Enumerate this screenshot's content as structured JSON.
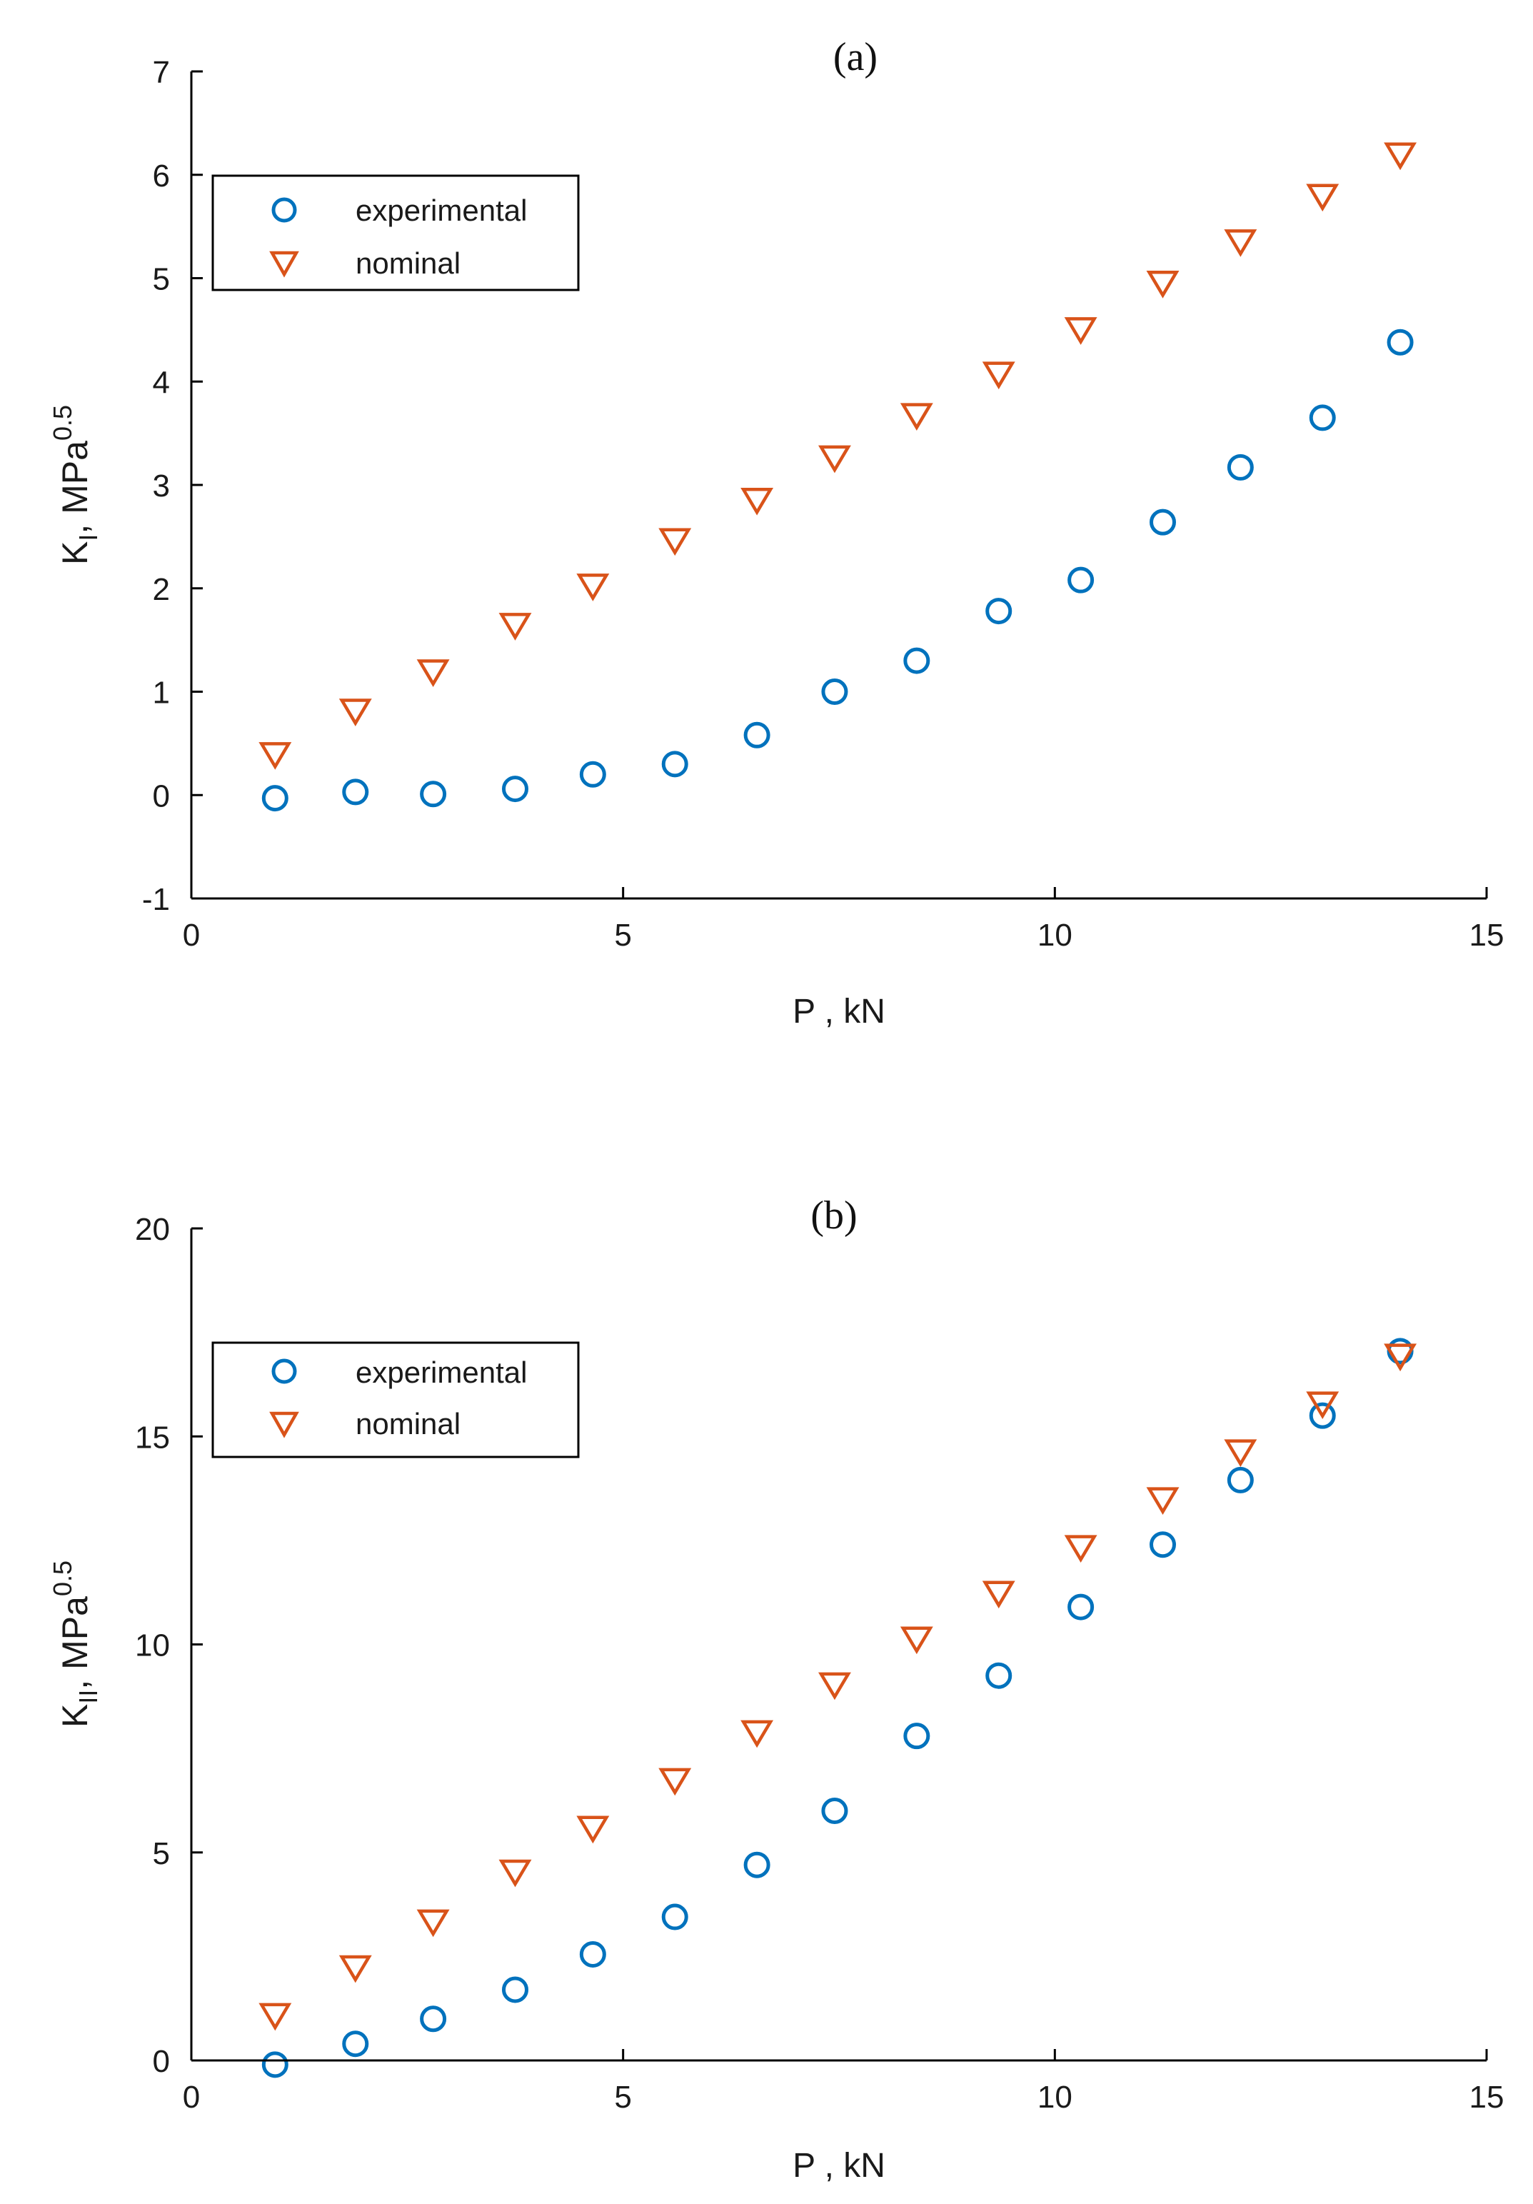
{
  "chart_data": [
    {
      "panel": "(a)",
      "type": "scatter",
      "title": "(a)",
      "xlabel": "P , kN",
      "ylabel": {
        "main": "K",
        "subscript": "I",
        "rest": ", MPa",
        "superscript": "0.5"
      },
      "xlim": [
        0,
        15
      ],
      "ylim": [
        -1,
        7
      ],
      "xticks": [
        0,
        5,
        10,
        15
      ],
      "yticks": [
        -1,
        0,
        1,
        2,
        3,
        4,
        5,
        6,
        7
      ],
      "grid": false,
      "legend_position": "top-left",
      "series": [
        {
          "name": "experimental",
          "marker": "circle",
          "color": "#0072BD",
          "x": [
            0.97,
            1.9,
            2.8,
            3.75,
            4.65,
            5.6,
            6.55,
            7.45,
            8.4,
            9.35,
            10.3,
            11.25,
            12.15,
            13.1,
            14.0
          ],
          "y": [
            -0.03,
            0.03,
            0.01,
            0.06,
            0.2,
            0.3,
            0.58,
            1.0,
            1.3,
            1.78,
            2.08,
            2.64,
            3.17,
            3.65,
            4.38
          ]
        },
        {
          "name": "nominal",
          "marker": "triangle-down",
          "color": "#D95319",
          "x": [
            0.97,
            1.9,
            2.8,
            3.75,
            4.65,
            5.6,
            6.55,
            7.45,
            8.4,
            9.35,
            10.3,
            11.25,
            12.15,
            13.1,
            14.0
          ],
          "y": [
            0.4,
            0.82,
            1.2,
            1.65,
            2.03,
            2.47,
            2.86,
            3.27,
            3.68,
            4.08,
            4.51,
            4.96,
            5.36,
            5.8,
            6.2
          ]
        }
      ]
    },
    {
      "panel": "(b)",
      "type": "scatter",
      "title": "(b)",
      "xlabel": "P , kN",
      "ylabel": {
        "main": "K",
        "subscript": "II",
        "rest": ", MPa",
        "superscript": "0.5"
      },
      "xlim": [
        0,
        15
      ],
      "ylim": [
        0,
        20
      ],
      "xticks": [
        0,
        5,
        10,
        15
      ],
      "yticks": [
        0,
        5,
        10,
        15,
        20
      ],
      "grid": false,
      "legend_position": "top-left",
      "series": [
        {
          "name": "experimental",
          "marker": "circle",
          "color": "#0072BD",
          "x": [
            0.97,
            1.9,
            2.8,
            3.75,
            4.65,
            5.6,
            6.55,
            7.45,
            8.4,
            9.35,
            10.3,
            11.25,
            12.15,
            13.1,
            14.0
          ],
          "y": [
            -0.1,
            0.4,
            1.0,
            1.7,
            2.55,
            3.45,
            4.7,
            6.0,
            7.8,
            9.25,
            10.9,
            12.4,
            13.95,
            15.5,
            17.05
          ]
        },
        {
          "name": "nominal",
          "marker": "triangle-down",
          "color": "#D95319",
          "x": [
            0.97,
            1.9,
            2.8,
            3.75,
            4.65,
            5.6,
            6.55,
            7.45,
            8.4,
            9.35,
            10.3,
            11.25,
            12.15,
            13.1,
            14.0
          ],
          "y": [
            1.1,
            2.25,
            3.35,
            4.55,
            5.6,
            6.75,
            7.9,
            9.05,
            10.15,
            11.25,
            12.35,
            13.5,
            14.65,
            15.8,
            16.95
          ]
        }
      ]
    }
  ]
}
